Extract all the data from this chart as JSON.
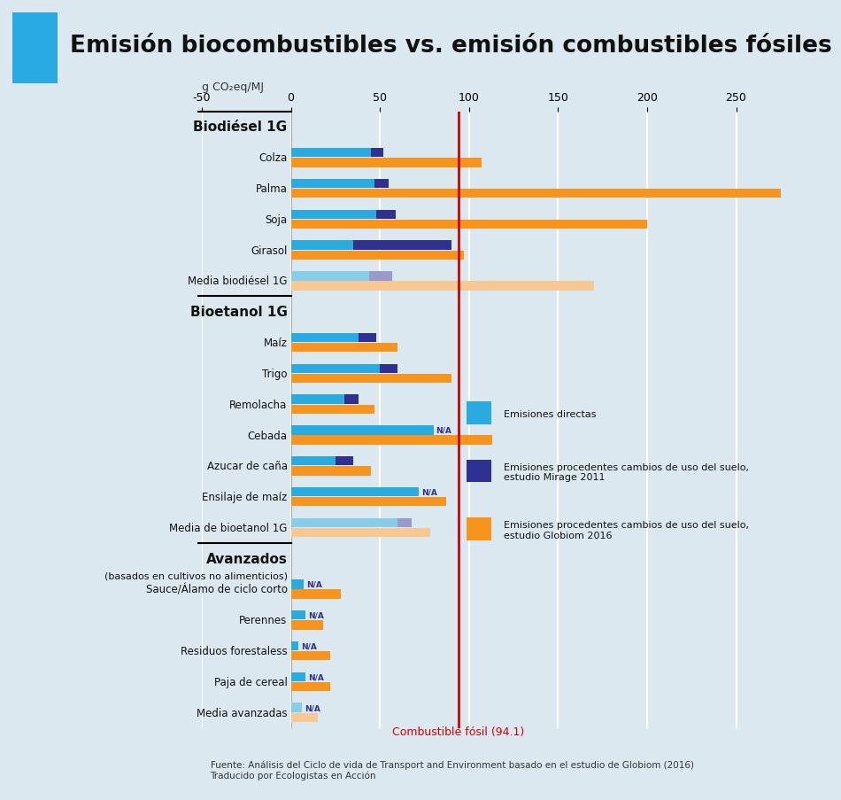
{
  "title": "Emisión biocombustibles vs. emisión combustibles fósiles",
  "xlabel": "g CO₂eq/MJ",
  "fossil_fuel_value": 94.1,
  "fossil_fuel_label": "Combustible fósil (94.1)",
  "xlim": [
    -50,
    290
  ],
  "xticks": [
    -50,
    0,
    50,
    100,
    150,
    200,
    250
  ],
  "background_color": "#dce8ef",
  "color_direct": "#29abe2",
  "color_direct_avg": "#87cce8",
  "color_mirage": "#2e3192",
  "color_mirage_avg": "#9999cc",
  "color_globiom": "#f7941d",
  "color_globiom_avg": "#f7c891",
  "color_fossil_line": "#cc0000",
  "sections": [
    {
      "label": "Biodiésel 1G",
      "is_header": true,
      "label2": null
    },
    {
      "label": "Colza",
      "direct": 45,
      "mirage": 52,
      "globiom": 107,
      "na_mirage": false,
      "is_avg": false
    },
    {
      "label": "Palma",
      "direct": 47,
      "mirage": 55,
      "globiom": 275,
      "na_mirage": false,
      "is_avg": false
    },
    {
      "label": "Soja",
      "direct": 48,
      "mirage": 59,
      "globiom": 200,
      "na_mirage": false,
      "is_avg": false
    },
    {
      "label": "Girasol",
      "direct": 35,
      "mirage": 90,
      "globiom": 97,
      "na_mirage": false,
      "is_avg": false
    },
    {
      "label": "Media biodiésel 1G",
      "direct": 44,
      "mirage": 57,
      "globiom": 170,
      "na_mirage": false,
      "is_avg": true
    },
    {
      "label": "Bioetanol 1G",
      "is_header": true,
      "label2": null
    },
    {
      "label": "Maíz",
      "direct": 38,
      "mirage": 48,
      "globiom": 60,
      "na_mirage": false,
      "is_avg": false
    },
    {
      "label": "Trigo",
      "direct": 50,
      "mirage": 60,
      "globiom": 90,
      "na_mirage": false,
      "is_avg": false
    },
    {
      "label": "Remolacha",
      "direct": 30,
      "mirage": 38,
      "globiom": 47,
      "na_mirage": false,
      "is_avg": false
    },
    {
      "label": "Cebada",
      "direct": 80,
      "mirage": null,
      "globiom": 113,
      "na_mirage": true,
      "is_avg": false
    },
    {
      "label": "Azucar de caña",
      "direct": 25,
      "mirage": 35,
      "globiom": 45,
      "na_mirage": false,
      "is_avg": false
    },
    {
      "label": "Ensilaje de maíz",
      "direct": 72,
      "mirage": null,
      "globiom": 87,
      "na_mirage": true,
      "is_avg": false
    },
    {
      "label": "Media de bioetanol 1G",
      "direct": 60,
      "mirage": 68,
      "globiom": 78,
      "na_mirage": false,
      "is_avg": true
    },
    {
      "label": "Avanzados",
      "is_header": true,
      "label2": "(basados en cultivos no alimenticios)"
    },
    {
      "label": "Sauce/Álamo de ciclo corto",
      "direct": 7,
      "mirage": null,
      "globiom": 28,
      "na_mirage": true,
      "is_avg": false
    },
    {
      "label": "Perennes",
      "direct": 8,
      "mirage": null,
      "globiom": 18,
      "na_mirage": true,
      "is_avg": false
    },
    {
      "label": "Residuos forestaless",
      "direct": 4,
      "mirage": null,
      "globiom": 22,
      "na_mirage": true,
      "is_avg": false
    },
    {
      "label": "Paja de cereal",
      "direct": 8,
      "mirage": null,
      "globiom": 22,
      "na_mirage": true,
      "is_avg": false
    },
    {
      "label": "Media avanzadas",
      "direct": 6,
      "mirage": null,
      "globiom": 15,
      "na_mirage": true,
      "is_avg": true
    }
  ],
  "legend_labels": [
    "Emisiones directas",
    "Emisiones procedentes cambios de uso del suelo,\nestudio Mirage 2011",
    "Emisiones procedentes cambios de uso del suelo,\nestudio Globiom 2016"
  ],
  "source_text": "Fuente: Análisis del Ciclo de vida de Transport and Environment basado en el estudio de Globiom (2016)\nTraducido por Ecologistas en Acción"
}
